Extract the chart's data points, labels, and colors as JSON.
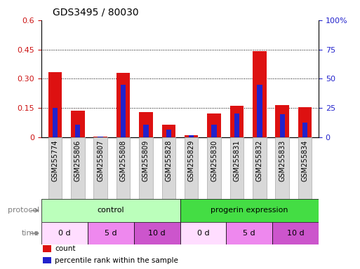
{
  "title": "GDS3495 / 80030",
  "samples": [
    "GSM255774",
    "GSM255806",
    "GSM255807",
    "GSM255808",
    "GSM255809",
    "GSM255828",
    "GSM255829",
    "GSM255830",
    "GSM255831",
    "GSM255832",
    "GSM255833",
    "GSM255834"
  ],
  "count_values": [
    0.335,
    0.135,
    0.004,
    0.33,
    0.13,
    0.065,
    0.01,
    0.122,
    0.16,
    0.44,
    0.165,
    0.155
  ],
  "percentile_values": [
    0.15,
    0.065,
    0.004,
    0.27,
    0.065,
    0.038,
    0.01,
    0.065,
    0.12,
    0.27,
    0.118,
    0.075
  ],
  "count_color": "#dd1111",
  "percentile_color": "#2222cc",
  "ylim_left": [
    0,
    0.6
  ],
  "ylim_right": [
    0,
    100
  ],
  "yticks_left": [
    0,
    0.15,
    0.3,
    0.45,
    0.6
  ],
  "ytick_labels_left": [
    "0",
    "0.15",
    "0.30",
    "0.45",
    "0.6"
  ],
  "yticks_right": [
    0,
    25,
    50,
    75,
    100
  ],
  "ytick_labels_right": [
    "0",
    "25",
    "50",
    "75",
    "100%"
  ],
  "dotted_lines": [
    0.15,
    0.3,
    0.45
  ],
  "protocol_groups": [
    {
      "label": "control",
      "start": 0,
      "end": 6,
      "color": "#bbffbb"
    },
    {
      "label": "progerin expression",
      "start": 6,
      "end": 12,
      "color": "#44dd44"
    }
  ],
  "time_groups": [
    {
      "label": "0 d",
      "start": 0,
      "end": 2,
      "color": "#ffddff"
    },
    {
      "label": "5 d",
      "start": 2,
      "end": 4,
      "color": "#ee88ee"
    },
    {
      "label": "10 d",
      "start": 4,
      "end": 6,
      "color": "#cc55cc"
    },
    {
      "label": "0 d",
      "start": 6,
      "end": 8,
      "color": "#ffddff"
    },
    {
      "label": "5 d",
      "start": 8,
      "end": 10,
      "color": "#ee88ee"
    },
    {
      "label": "10 d",
      "start": 10,
      "end": 12,
      "color": "#cc55cc"
    }
  ],
  "legend_items": [
    {
      "label": "count",
      "color": "#dd1111"
    },
    {
      "label": "percentile rank within the sample",
      "color": "#2222cc"
    }
  ],
  "bar_width": 0.6,
  "bg_color": "#ffffff",
  "tick_color_left": "#cc1111",
  "tick_color_right": "#2222cc",
  "sample_box_color": "#d8d8d8",
  "sample_box_edge": "#aaaaaa"
}
